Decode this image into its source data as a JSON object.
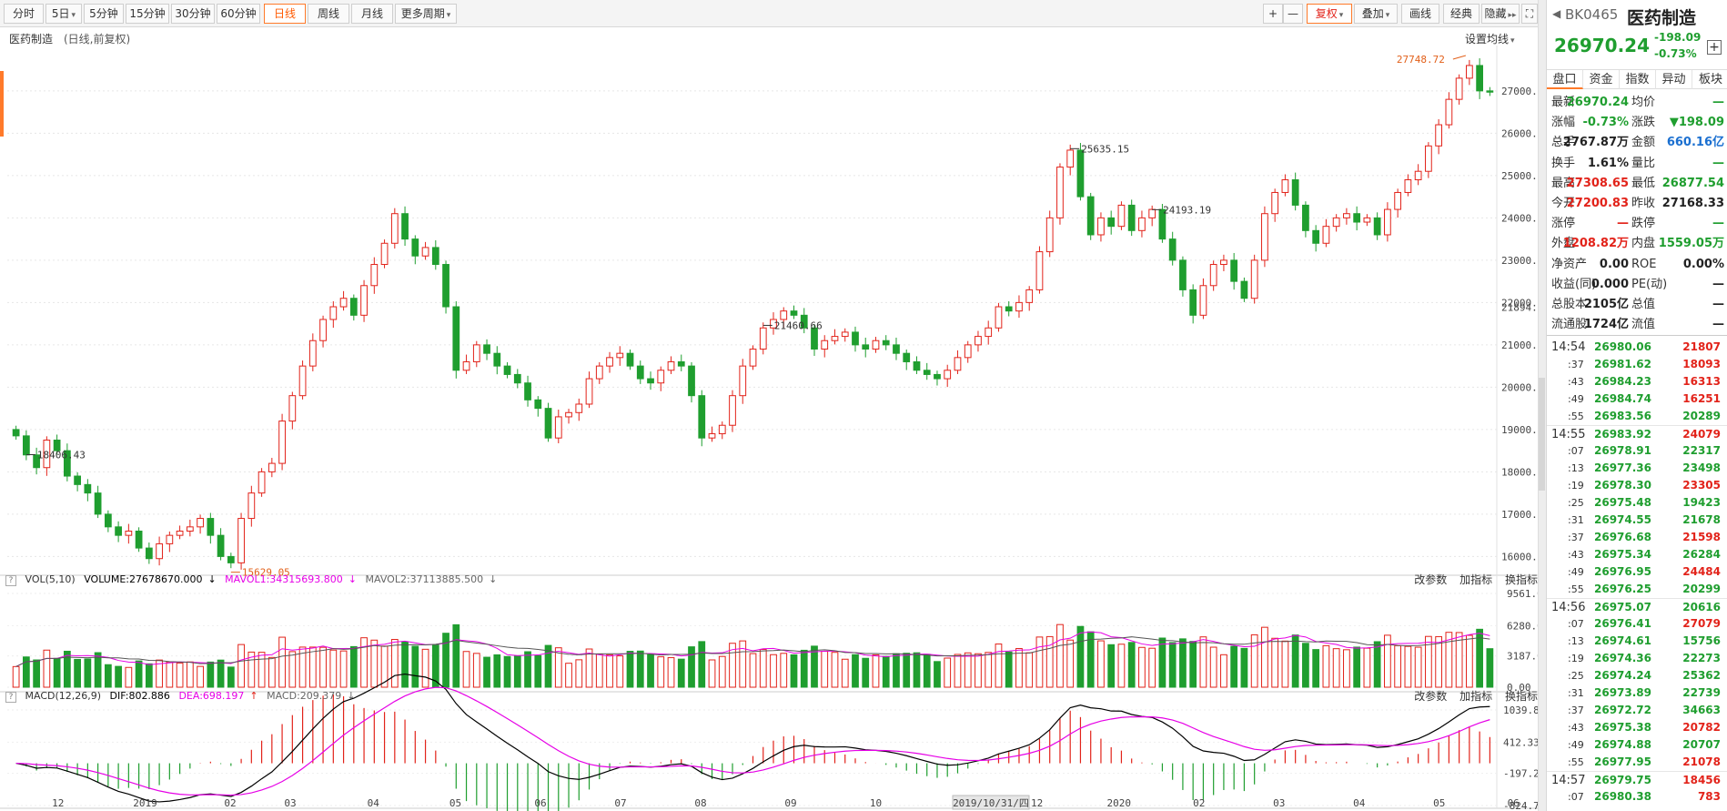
{
  "toolbar": {
    "periods": [
      "分时",
      "5日",
      "5分钟",
      "15分钟",
      "30分钟",
      "60分钟",
      "日线",
      "周线",
      "月线",
      "更多周期"
    ],
    "active_period": "日线",
    "right_tools": [
      "+",
      "—",
      "复权",
      "叠加",
      "画线",
      "经典",
      "隐藏"
    ]
  },
  "chart": {
    "title": "医药制造",
    "subtitle": "(日线,前复权)",
    "ma_setting": "设置均线"
  },
  "chart_data": {
    "type": "candlestick",
    "price_ticks": [
      "27000.0",
      "26000.0",
      "25000.0",
      "24000.0",
      "23000.0",
      "22000.0",
      "21000.0",
      "20000.0",
      "19000.0",
      "18000.0",
      "17000.0",
      "16000.0"
    ],
    "price_range": [
      15600,
      27900
    ],
    "current_marker": "21894.7",
    "annotations": [
      "27748.72",
      "25635.15",
      "24193.19",
      "21460.66",
      "18406.43",
      "15629.05"
    ],
    "annotation_values": [
      27748.72,
      25635.15,
      24193.19,
      21460.66,
      18406.43,
      15629.05
    ],
    "x_ticks": [
      "12",
      "2019",
      "02",
      "03",
      "04",
      "05",
      "06",
      "07",
      "08",
      "09",
      "10",
      "2019/10/31/四",
      "12",
      "2020",
      "02",
      "03",
      "04",
      "05",
      "06"
    ],
    "closes": [
      18850,
      18400,
      18100,
      18750,
      18500,
      17900,
      17700,
      17500,
      17000,
      16700,
      16500,
      16600,
      16200,
      15950,
      16300,
      16500,
      16600,
      16700,
      16900,
      16500,
      16000,
      15850,
      16900,
      17500,
      18000,
      18200,
      19200,
      19800,
      20500,
      21100,
      21600,
      21900,
      22100,
      21700,
      22400,
      22900,
      23400,
      24100,
      23500,
      23100,
      23300,
      22900,
      21900,
      20400,
      20600,
      21000,
      20800,
      20500,
      20300,
      20100,
      19700,
      19500,
      18800,
      19300,
      19400,
      19600,
      20200,
      20500,
      20700,
      20800,
      20500,
      20200,
      20100,
      20400,
      20600,
      20500,
      19800,
      18800,
      18900,
      19100,
      19800,
      20500,
      20900,
      21400,
      21600,
      21800,
      21700,
      21400,
      20900,
      21100,
      21200,
      21300,
      21000,
      20900,
      21100,
      21000,
      20800,
      20600,
      20400,
      20300,
      20200,
      20400,
      20700,
      21000,
      21200,
      21400,
      21900,
      21800,
      22000,
      22300,
      23200,
      24000,
      25200,
      25600,
      24500,
      23600,
      24000,
      23800,
      24300,
      23700,
      24000,
      24200,
      23500,
      23000,
      22300,
      21700,
      22400,
      22900,
      23000,
      22500,
      22100,
      23000,
      24100,
      24600,
      24900,
      24300,
      23700,
      23400,
      23800,
      24000,
      24100,
      23900,
      24000,
      23600,
      24200,
      24600,
      24900,
      25100,
      25700,
      26200,
      26800,
      27300,
      27600,
      27000,
      26970
    ],
    "volume": {
      "label": "VOL(5,10)",
      "volume": "VOLUME:27678670.000",
      "mavol1": "MAVOL1:34315693.800",
      "mavol2": "MAVOL2:37113885.500",
      "ticks": [
        "9561.00",
        "6280.00",
        "3187.00",
        "0.00"
      ]
    },
    "macd": {
      "label": "MACD(12,26,9)",
      "dif": "DIF:802.886",
      "dea": "DEA:698.197",
      "macd": "MACD:209.379",
      "ticks": [
        "1039.83",
        "412.33",
        "-197.25",
        "-824.75"
      ]
    }
  },
  "indicator_tools": [
    "改参数",
    "加指标",
    "换指标"
  ],
  "panel": {
    "code": "BK0465",
    "name": "医药制造",
    "price": "26970.24",
    "change": "-198.09",
    "change_pct": "-0.73%",
    "tabs": [
      "盘口",
      "资金",
      "指数",
      "异动",
      "板块"
    ],
    "stats": [
      {
        "l1": "最新",
        "v1": "26970.24",
        "c1": "green",
        "l2": "均价",
        "v2": "—",
        "c2": "green"
      },
      {
        "l1": "涨幅",
        "v1": "-0.73%",
        "c1": "green",
        "l2": "涨跌",
        "v2": "▼198.09",
        "c2": "green"
      },
      {
        "l1": "总手",
        "v1": "2767.87万",
        "c1": "black",
        "l2": "金额",
        "v2": "660.16亿",
        "c2": "blue"
      },
      {
        "l1": "换手",
        "v1": "1.61%",
        "c1": "black",
        "l2": "量比",
        "v2": "—",
        "c2": "green"
      },
      {
        "l1": "最高",
        "v1": "27308.65",
        "c1": "red",
        "l2": "最低",
        "v2": "26877.54",
        "c2": "green"
      },
      {
        "l1": "今开",
        "v1": "27200.83",
        "c1": "red",
        "l2": "昨收",
        "v2": "27168.33",
        "c2": "black"
      },
      {
        "l1": "涨停",
        "v1": "—",
        "c1": "red",
        "l2": "跌停",
        "v2": "—",
        "c2": "green"
      },
      {
        "l1": "外盘",
        "v1": "1208.82万",
        "c1": "red",
        "l2": "内盘",
        "v2": "1559.05万",
        "c2": "green"
      },
      {
        "l1": "净资产",
        "v1": "0.00",
        "c1": "black",
        "l2": "ROE",
        "v2": "0.00%",
        "c2": "black"
      },
      {
        "l1": "收益(同)",
        "v1": "0.000",
        "c1": "black",
        "l2": "PE(动)",
        "v2": "—",
        "c2": "black"
      },
      {
        "l1": "总股本",
        "v1": "2105亿",
        "c1": "black",
        "l2": "总值",
        "v2": "—",
        "c2": "black"
      },
      {
        "l1": "流通股",
        "v1": "1724亿",
        "c1": "black",
        "l2": "流值",
        "v2": "—",
        "c2": "black"
      }
    ],
    "ticks": [
      {
        "t": "14:54",
        "p": "26980.06",
        "v": "21807",
        "c": "red",
        "big": true
      },
      {
        "t": ":37",
        "p": "26981.62",
        "v": "18093",
        "c": "red"
      },
      {
        "t": ":43",
        "p": "26984.23",
        "v": "16313",
        "c": "red"
      },
      {
        "t": ":49",
        "p": "26984.74",
        "v": "16251",
        "c": "red"
      },
      {
        "t": ":55",
        "p": "26983.56",
        "v": "20289",
        "c": "green"
      },
      {
        "t": "14:55",
        "p": "26983.92",
        "v": "24079",
        "c": "red",
        "big": true
      },
      {
        "t": ":07",
        "p": "26978.91",
        "v": "22317",
        "c": "green"
      },
      {
        "t": ":13",
        "p": "26977.36",
        "v": "23498",
        "c": "green"
      },
      {
        "t": ":19",
        "p": "26978.30",
        "v": "23305",
        "c": "red"
      },
      {
        "t": ":25",
        "p": "26975.48",
        "v": "19423",
        "c": "green"
      },
      {
        "t": ":31",
        "p": "26974.55",
        "v": "21678",
        "c": "green"
      },
      {
        "t": ":37",
        "p": "26976.68",
        "v": "21598",
        "c": "red"
      },
      {
        "t": ":43",
        "p": "26975.34",
        "v": "26284",
        "c": "green"
      },
      {
        "t": ":49",
        "p": "26976.95",
        "v": "24484",
        "c": "red"
      },
      {
        "t": ":55",
        "p": "26976.25",
        "v": "20299",
        "c": "green"
      },
      {
        "t": "14:56",
        "p": "26975.07",
        "v": "20616",
        "c": "green",
        "big": true
      },
      {
        "t": ":07",
        "p": "26976.41",
        "v": "27079",
        "c": "red"
      },
      {
        "t": ":13",
        "p": "26974.61",
        "v": "15756",
        "c": "green"
      },
      {
        "t": ":19",
        "p": "26974.36",
        "v": "22273",
        "c": "green"
      },
      {
        "t": ":25",
        "p": "26974.24",
        "v": "25362",
        "c": "green"
      },
      {
        "t": ":31",
        "p": "26973.89",
        "v": "22739",
        "c": "green"
      },
      {
        "t": ":37",
        "p": "26972.72",
        "v": "34663",
        "c": "green"
      },
      {
        "t": ":43",
        "p": "26975.38",
        "v": "20782",
        "c": "red"
      },
      {
        "t": ":49",
        "p": "26974.88",
        "v": "20707",
        "c": "green"
      },
      {
        "t": ":55",
        "p": "26977.95",
        "v": "21078",
        "c": "red"
      },
      {
        "t": "14:57",
        "p": "26979.75",
        "v": "18456",
        "c": "red",
        "big": true
      },
      {
        "t": ":07",
        "p": "26980.38",
        "v": "783",
        "c": "red"
      }
    ]
  },
  "colors": {
    "up": "#e2231a",
    "down": "#1f9e2f",
    "accent": "#ff7a2a",
    "ma1": "#e600e6",
    "line": "#000000"
  }
}
